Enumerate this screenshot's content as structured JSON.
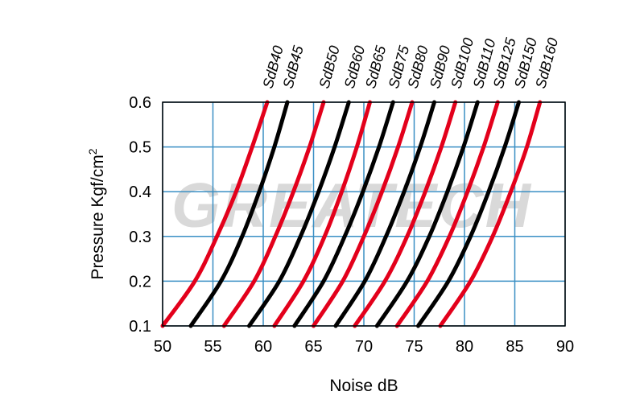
{
  "chart_data": {
    "type": "line",
    "title": "",
    "xlabel": "Noise  dB",
    "ylabel": "Pressure  Kgf/cm",
    "ylabel_sup": "2",
    "xlim": [
      50,
      90
    ],
    "ylim": [
      0.1,
      0.6
    ],
    "xticks": [
      "50",
      "55",
      "60",
      "65",
      "70",
      "75",
      "80",
      "85",
      "90"
    ],
    "yticks": [
      "0.1",
      "0.2",
      "0.3",
      "0.4",
      "0.5",
      "0.6"
    ],
    "grid": true,
    "watermark": "GREATECH",
    "y": [
      0.1,
      0.2,
      0.3,
      0.4,
      0.5,
      0.6
    ],
    "series": [
      {
        "name": "SdB40",
        "color": "#e3001b",
        "x": [
          50.0,
          53.2,
          55.4,
          57.3,
          58.9,
          60.4
        ]
      },
      {
        "name": "SdB45",
        "color": "#000000",
        "x": [
          52.8,
          55.8,
          57.9,
          59.6,
          61.1,
          62.4
        ]
      },
      {
        "name": "SdB50",
        "color": "#e3001b",
        "x": [
          56.1,
          59.1,
          61.2,
          63.0,
          64.6,
          66.0
        ]
      },
      {
        "name": "SdB60",
        "color": "#000000",
        "x": [
          58.6,
          61.6,
          63.7,
          65.5,
          67.1,
          68.5
        ]
      },
      {
        "name": "SdB65",
        "color": "#e3001b",
        "x": [
          61.1,
          64.0,
          66.1,
          67.8,
          69.3,
          70.6
        ]
      },
      {
        "name": "SdB75",
        "color": "#000000",
        "x": [
          63.1,
          66.0,
          68.1,
          69.9,
          71.5,
          72.9
        ]
      },
      {
        "name": "SdB80",
        "color": "#e3001b",
        "x": [
          65.0,
          67.9,
          70.0,
          71.8,
          73.4,
          74.8
        ]
      },
      {
        "name": "SdB90",
        "color": "#000000",
        "x": [
          67.2,
          70.1,
          72.2,
          74.0,
          75.6,
          77.0
        ]
      },
      {
        "name": "SdB100",
        "color": "#e3001b",
        "x": [
          69.1,
          72.1,
          74.3,
          76.1,
          77.7,
          79.1
        ]
      },
      {
        "name": "SdB110",
        "color": "#000000",
        "x": [
          71.3,
          74.3,
          76.5,
          78.3,
          79.9,
          81.3
        ]
      },
      {
        "name": "SdB125",
        "color": "#e3001b",
        "x": [
          73.3,
          76.3,
          78.5,
          80.3,
          81.9,
          83.3
        ]
      },
      {
        "name": "SdB150",
        "color": "#000000",
        "x": [
          75.4,
          78.4,
          80.6,
          82.4,
          84.0,
          85.4
        ]
      },
      {
        "name": "SdB160",
        "color": "#e3001b",
        "x": [
          77.6,
          80.6,
          82.8,
          84.6,
          86.2,
          87.5
        ]
      }
    ]
  }
}
